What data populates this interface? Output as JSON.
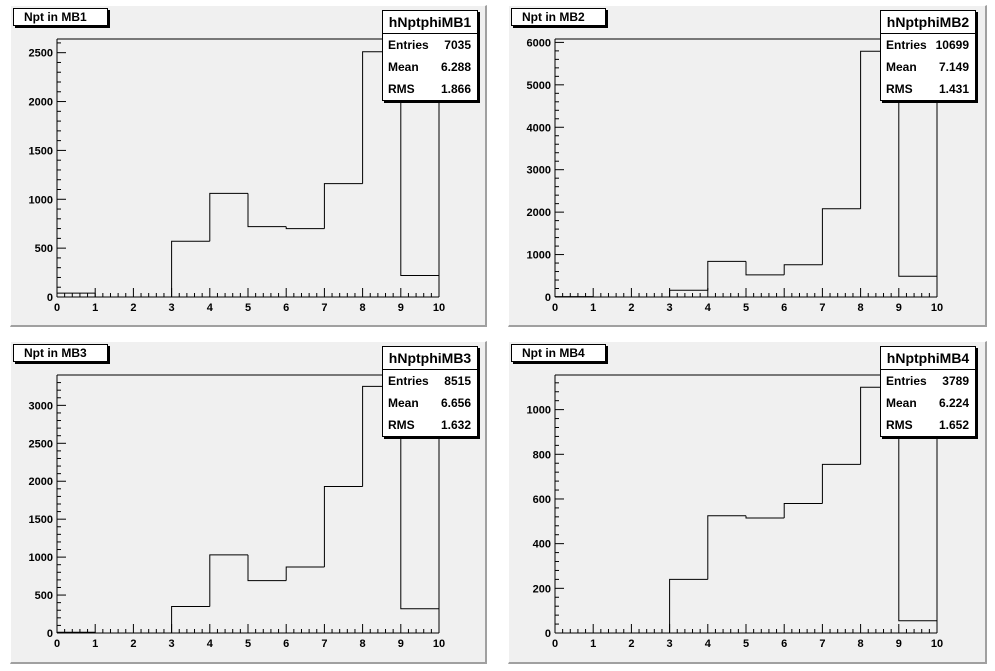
{
  "pads": [
    {
      "title": "Npt in MB1",
      "stats": {
        "name": "hNptphiMB1",
        "entries_label": "Entries",
        "entries": "7035",
        "mean_label": "Mean",
        "mean": "6.288",
        "rms_label": "RMS",
        "rms": "1.866"
      },
      "chart_data": {
        "type": "bar",
        "bin_edges": [
          0,
          1,
          2,
          3,
          4,
          5,
          6,
          7,
          8,
          9,
          10
        ],
        "values": [
          40,
          0,
          0,
          570,
          1060,
          720,
          700,
          1160,
          2510,
          220
        ],
        "xlim": [
          0,
          10
        ],
        "ylim": [
          0,
          2640
        ],
        "x_ticks": [
          0,
          1,
          2,
          3,
          4,
          5,
          6,
          7,
          8,
          9,
          10
        ],
        "y_ticks": [
          0,
          500,
          1000,
          1500,
          2000,
          2500
        ]
      }
    },
    {
      "title": "Npt in MB2",
      "stats": {
        "name": "hNptphiMB2",
        "entries_label": "Entries",
        "entries": "10699",
        "mean_label": "Mean",
        "mean": "7.149",
        "rms_label": "RMS",
        "rms": "1.431"
      },
      "chart_data": {
        "type": "bar",
        "bin_edges": [
          0,
          1,
          2,
          3,
          4,
          5,
          6,
          7,
          8,
          9,
          10
        ],
        "values": [
          10,
          0,
          0,
          160,
          840,
          520,
          760,
          2080,
          5790,
          490
        ],
        "xlim": [
          0,
          10
        ],
        "ylim": [
          0,
          6080
        ],
        "x_ticks": [
          0,
          1,
          2,
          3,
          4,
          5,
          6,
          7,
          8,
          9,
          10
        ],
        "y_ticks": [
          0,
          1000,
          2000,
          3000,
          4000,
          5000,
          6000
        ]
      }
    },
    {
      "title": "Npt in MB3",
      "stats": {
        "name": "hNptphiMB3",
        "entries_label": "Entries",
        "entries": "8515",
        "mean_label": "Mean",
        "mean": "6.656",
        "rms_label": "RMS",
        "rms": "1.632"
      },
      "chart_data": {
        "type": "bar",
        "bin_edges": [
          0,
          1,
          2,
          3,
          4,
          5,
          6,
          7,
          8,
          9,
          10
        ],
        "values": [
          10,
          0,
          0,
          350,
          1030,
          690,
          870,
          1930,
          3250,
          320
        ],
        "xlim": [
          0,
          10
        ],
        "ylim": [
          0,
          3400
        ],
        "x_ticks": [
          0,
          1,
          2,
          3,
          4,
          5,
          6,
          7,
          8,
          9,
          10
        ],
        "y_ticks": [
          0,
          500,
          1000,
          1500,
          2000,
          2500,
          3000
        ]
      }
    },
    {
      "title": "Npt in MB4",
      "stats": {
        "name": "hNptphiMB4",
        "entries_label": "Entries",
        "entries": "3789",
        "mean_label": "Mean",
        "mean": "6.224",
        "rms_label": "RMS",
        "rms": "1.652"
      },
      "chart_data": {
        "type": "bar",
        "bin_edges": [
          0,
          1,
          2,
          3,
          4,
          5,
          6,
          7,
          8,
          9,
          10
        ],
        "values": [
          0,
          0,
          0,
          240,
          525,
          515,
          580,
          755,
          1100,
          55
        ],
        "xlim": [
          0,
          10
        ],
        "ylim": [
          0,
          1155
        ],
        "x_ticks": [
          0,
          1,
          2,
          3,
          4,
          5,
          6,
          7,
          8,
          9,
          10
        ],
        "y_ticks": [
          0,
          200,
          400,
          600,
          800,
          1000
        ]
      }
    }
  ]
}
